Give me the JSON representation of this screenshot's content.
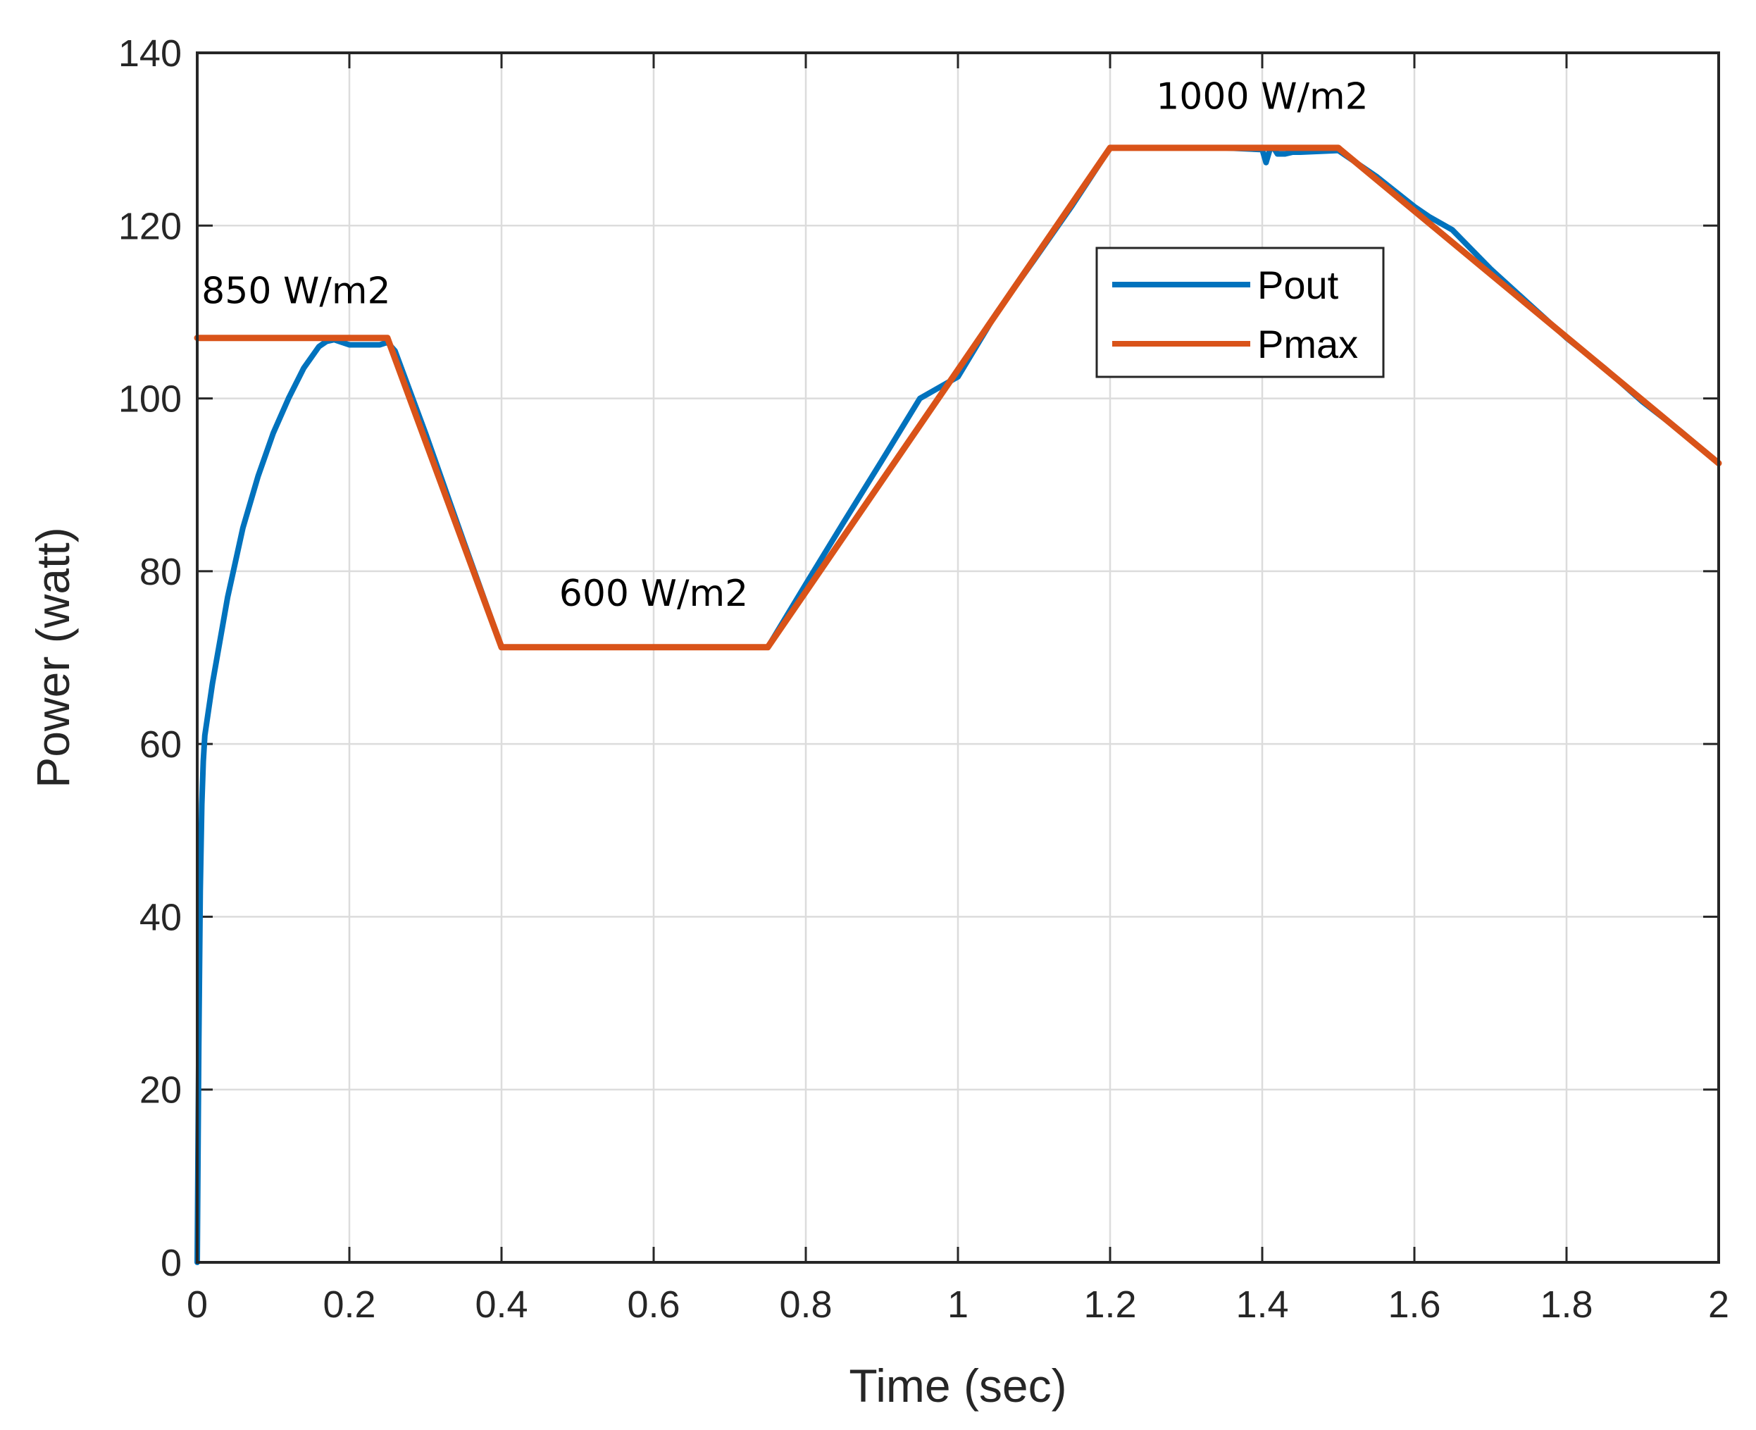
{
  "chart_data": {
    "type": "line",
    "title": "",
    "xlabel": "Time (sec)",
    "ylabel": "Power (watt)",
    "xlim": [
      0,
      2
    ],
    "ylim": [
      0,
      140
    ],
    "xticks": [
      0,
      0.2,
      0.4,
      0.6,
      0.8,
      1,
      1.2,
      1.4,
      1.6,
      1.8,
      2
    ],
    "xtick_labels": [
      "0",
      "0.2",
      "0.4",
      "0.6",
      "0.8",
      "1",
      "1.2",
      "1.4",
      "1.6",
      "1.8",
      "2"
    ],
    "yticks": [
      0,
      20,
      40,
      60,
      80,
      100,
      120,
      140
    ],
    "ytick_labels": [
      "0",
      "20",
      "40",
      "60",
      "80",
      "100",
      "120",
      "140"
    ],
    "grid": true,
    "legend_position": "upper-middle-right",
    "series": [
      {
        "name": "Pout",
        "color": "#0072BD",
        "x": [
          0,
          0.002,
          0.004,
          0.006,
          0.008,
          0.01,
          0.015,
          0.02,
          0.03,
          0.04,
          0.05,
          0.06,
          0.08,
          0.1,
          0.12,
          0.14,
          0.16,
          0.17,
          0.18,
          0.19,
          0.2,
          0.22,
          0.24,
          0.25,
          0.26,
          0.3,
          0.35,
          0.4,
          0.45,
          0.5,
          0.6,
          0.7,
          0.75,
          0.8,
          0.85,
          0.9,
          0.95,
          1.0,
          1.05,
          1.1,
          1.15,
          1.2,
          1.25,
          1.3,
          1.35,
          1.4,
          1.405,
          1.41,
          1.415,
          1.42,
          1.43,
          1.44,
          1.45,
          1.5,
          1.55,
          1.6,
          1.62,
          1.65,
          1.7,
          1.75,
          1.8,
          1.85,
          1.9,
          1.95,
          2.0
        ],
        "values": [
          0,
          25,
          43,
          53,
          58,
          61,
          64,
          67,
          72,
          77,
          81,
          85,
          91,
          96,
          100,
          103.5,
          106,
          106.6,
          106.8,
          106.5,
          106.2,
          106.2,
          106.2,
          106.5,
          105.5,
          96,
          83.5,
          71.2,
          71.2,
          71.2,
          71.2,
          71.2,
          71.2,
          78.5,
          85.7,
          92.8,
          100,
          102.5,
          109.8,
          116,
          122.3,
          129,
          129,
          129,
          129,
          128.8,
          127.3,
          128.8,
          129,
          128.3,
          128.3,
          128.5,
          128.5,
          128.7,
          125.7,
          122.2,
          121,
          119.5,
          115,
          111,
          107,
          103.5,
          99.6,
          96.2,
          92.5
        ]
      },
      {
        "name": "Pmax",
        "color": "#D95319",
        "x": [
          0,
          0.25,
          0.4,
          0.75,
          1.2,
          1.5,
          2.0
        ],
        "values": [
          107,
          107,
          71.2,
          71.2,
          129,
          129,
          92.5
        ]
      }
    ],
    "annotations": [
      {
        "text": "850 W/m2",
        "x": 0.13,
        "y": 111
      },
      {
        "text": "600 W/m2",
        "x": 0.6,
        "y": 76
      },
      {
        "text": "1000 W/m2",
        "x": 1.4,
        "y": 133.5
      }
    ]
  }
}
